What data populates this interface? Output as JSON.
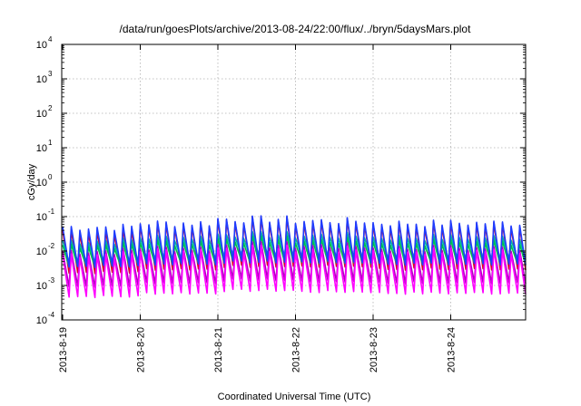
{
  "chart_data": {
    "type": "line",
    "title": "/data/run/goesPlots/archive/2013-08-24/22:00/flux/../bryn/5daysMars.plot",
    "xlabel": "Coordinated Universal Time (UTC)",
    "ylabel": "cGy/day",
    "yscale": "log",
    "ylim": [
      0.0001,
      10000
    ],
    "xlim": [
      "2013-08-19",
      "2013-08-25"
    ],
    "grid": true,
    "ytick_labels": [
      {
        "base": "10",
        "exp": "-4",
        "value": 0.0001
      },
      {
        "base": "10",
        "exp": "-3",
        "value": 0.001
      },
      {
        "base": "10",
        "exp": "-2",
        "value": 0.01
      },
      {
        "base": "10",
        "exp": "-1",
        "value": 0.1
      },
      {
        "base": "10",
        "exp": "0",
        "value": 1
      },
      {
        "base": "10",
        "exp": "1",
        "value": 10
      },
      {
        "base": "10",
        "exp": "2",
        "value": 100
      },
      {
        "base": "10",
        "exp": "3",
        "value": 1000
      },
      {
        "base": "10",
        "exp": "4",
        "value": 10000
      }
    ],
    "xtick_labels": [
      "2013-8-19",
      "2013-8-20",
      "2013-8-21",
      "2013-8-22",
      "2013-8-23",
      "2013-8-24"
    ],
    "series_colors": [
      "#e0001a",
      "#b000c0",
      "#00b0b0",
      "#1e3cff",
      "#00c050",
      "#ff00ff"
    ],
    "series": [
      {
        "color": "#e0001a",
        "peak": [
          0.04,
          0.06,
          0.08,
          0.07,
          0.06,
          0.06
        ],
        "trough": [
          0.002,
          0.0025,
          0.003,
          0.003,
          0.0025,
          0.0025
        ]
      },
      {
        "color": "#b000c0",
        "peak": [
          0.01,
          0.012,
          0.015,
          0.014,
          0.012,
          0.012
        ],
        "trough": [
          0.0008,
          0.001,
          0.0012,
          0.0011,
          0.001,
          0.001
        ]
      },
      {
        "color": "#00b0b0",
        "peak": [
          0.02,
          0.025,
          0.03,
          0.028,
          0.025,
          0.025
        ],
        "trough": [
          0.004,
          0.005,
          0.006,
          0.0055,
          0.005,
          0.005
        ]
      },
      {
        "color": "#1e3cff",
        "peak": [
          0.05,
          0.065,
          0.085,
          0.075,
          0.065,
          0.065
        ],
        "trough": [
          0.003,
          0.0035,
          0.004,
          0.004,
          0.0035,
          0.0035
        ]
      },
      {
        "color": "#00c050",
        "peak": [
          0.015,
          0.018,
          0.022,
          0.02,
          0.018,
          0.018
        ],
        "trough": [
          0.003,
          0.0035,
          0.004,
          0.0038,
          0.0035,
          0.0035
        ]
      },
      {
        "color": "#ff00ff",
        "peak": [
          0.008,
          0.01,
          0.012,
          0.011,
          0.01,
          0.01
        ],
        "trough": [
          0.0004,
          0.0005,
          0.0006,
          0.00055,
          0.0005,
          0.0005
        ]
      }
    ],
    "cycles_per_day": 9
  }
}
